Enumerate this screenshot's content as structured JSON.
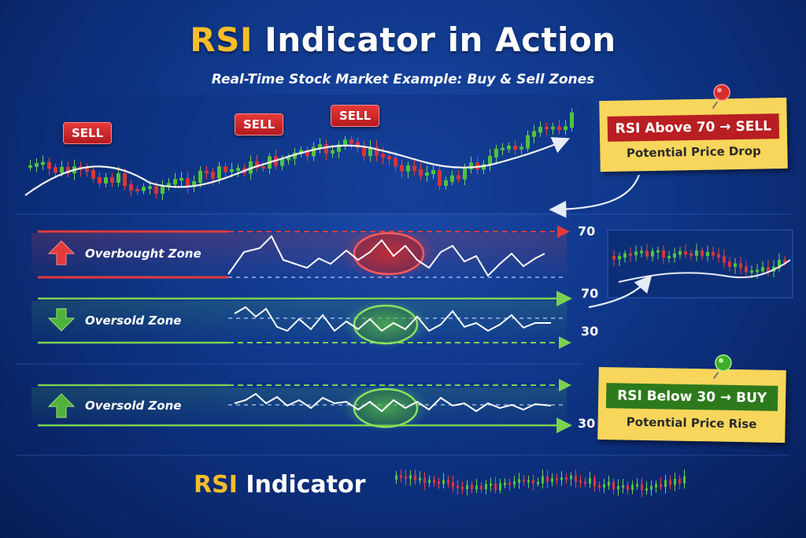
{
  "title": {
    "accent": "RSI",
    "main": "Indicator",
    "tail": "in Action"
  },
  "subtitle": "Real-Time Stock Market Example: Buy & Sell Zones",
  "sell_markers": [
    "SELL",
    "SELL",
    "SELL"
  ],
  "sell_note": {
    "head": "RSI Above 70 → SELL",
    "sub": "Potential Price Drop"
  },
  "buy_note": {
    "head": "RSI Below 30 → BUY",
    "sub": "Potential Price Rise"
  },
  "zones": [
    {
      "label": "Overbought Zone",
      "level": "70"
    },
    {
      "label": "Oversold Zone",
      "levels": [
        "70",
        "30"
      ]
    },
    {
      "label": "Oversold Zone",
      "level": "30"
    }
  ],
  "footer": {
    "accent": "RSI",
    "main": "Indicator"
  },
  "colors": {
    "gold": "#f6bd2a",
    "red": "#e23a3a",
    "green": "#5fc94a",
    "note": "#f7d65b"
  }
}
